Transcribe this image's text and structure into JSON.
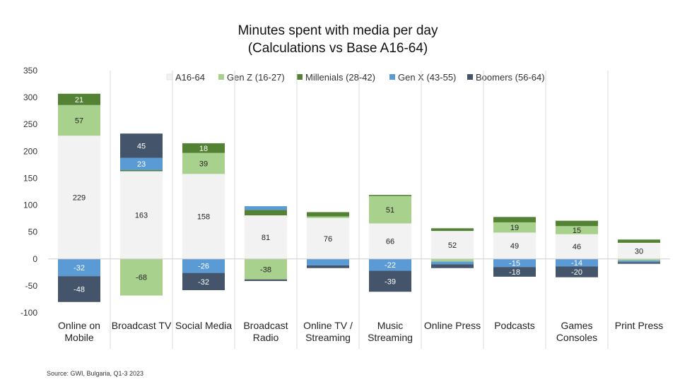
{
  "chart_data": {
    "type": "bar",
    "stacked": true,
    "title": "Minutes spent with media per day",
    "subtitle": "(Calculations vs Base A16-64)",
    "xlabel": "",
    "ylabel": "",
    "ylim": [
      -100,
      350
    ],
    "yticks": [
      350,
      300,
      250,
      200,
      150,
      100,
      50,
      0,
      -50,
      -100
    ],
    "grid": false,
    "legend_position": "top",
    "categories": [
      [
        "Online on",
        "Mobile"
      ],
      [
        "Broadcast TV"
      ],
      [
        "Social Media"
      ],
      [
        "Broadcast",
        "Radio"
      ],
      [
        "Online TV /",
        "Streaming"
      ],
      [
        "Music",
        "Streaming"
      ],
      [
        "Online Press"
      ],
      [
        "Podcasts"
      ],
      [
        "Games",
        "Consoles"
      ],
      [
        "Print Press"
      ]
    ],
    "series": [
      {
        "name": "A16-64",
        "color": "#f2f2f2",
        "values": [
          229,
          163,
          158,
          81,
          76,
          66,
          52,
          49,
          46,
          30
        ],
        "labels": [
          "229",
          "163",
          "158",
          "81",
          "76",
          "66",
          "52",
          "49",
          "46",
          "30"
        ]
      },
      {
        "name": "Gen Z (16-27)",
        "color": "#a9d18e",
        "values": [
          57,
          -68,
          39,
          -38,
          3,
          51,
          -5,
          19,
          15,
          -3
        ],
        "labels": [
          "57",
          "-68",
          "39",
          "-38",
          "",
          "51",
          "",
          "19",
          "15",
          ""
        ]
      },
      {
        "name": "Millenials (28-42)",
        "color": "#548235",
        "values": [
          21,
          2,
          18,
          10,
          8,
          2,
          5,
          10,
          10,
          6
        ],
        "labels": [
          "21",
          "",
          "18",
          "",
          "",
          "",
          "",
          "",
          "",
          ""
        ]
      },
      {
        "name": "Gen X (43-55)",
        "color": "#5b9bd5",
        "values": [
          -32,
          23,
          -26,
          7,
          -12,
          -22,
          -5,
          -15,
          -14,
          -3
        ],
        "labels": [
          "-32",
          "23",
          "-26",
          "",
          "",
          "-22",
          "",
          "-15",
          "-14",
          ""
        ]
      },
      {
        "name": "Boomers (56-64)",
        "color": "#44546a",
        "values": [
          -48,
          45,
          -32,
          -3,
          -5,
          -39,
          -7,
          -18,
          -20,
          -3
        ],
        "labels": [
          "-48",
          "45",
          "-32",
          "",
          "",
          "-39",
          "",
          "-18",
          "-20",
          ""
        ]
      }
    ]
  },
  "source": "Source: GWI, Bulgaria, Q1-3 2023"
}
